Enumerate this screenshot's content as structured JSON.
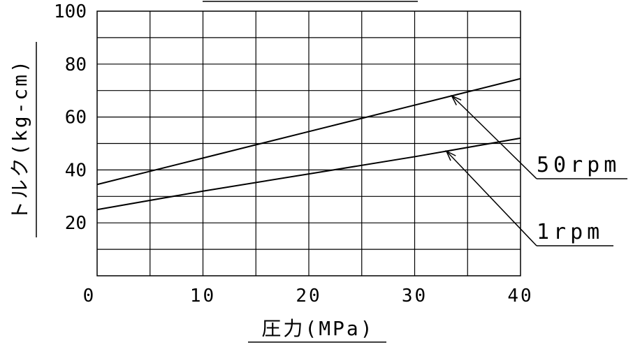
{
  "chart_data": {
    "type": "line",
    "xlabel": "圧力(MPa)",
    "ylabel": "トルク(kg-cm)",
    "xlim": [
      0,
      40
    ],
    "ylim": [
      0,
      100
    ],
    "grid": true,
    "x_ticks": [
      "0",
      "10",
      "20",
      "30",
      "40"
    ],
    "y_ticks": [
      "20",
      "40",
      "60",
      "80",
      "100"
    ],
    "series": [
      {
        "name": "50rpm",
        "x": [
          0,
          10,
          20,
          30,
          40
        ],
        "y": [
          34.5,
          44.5,
          54.5,
          64.5,
          74.5
        ]
      },
      {
        "name": "1rpm",
        "x": [
          0,
          10,
          20,
          30,
          40
        ],
        "y": [
          25,
          32,
          38.5,
          45,
          52
        ]
      }
    ]
  }
}
